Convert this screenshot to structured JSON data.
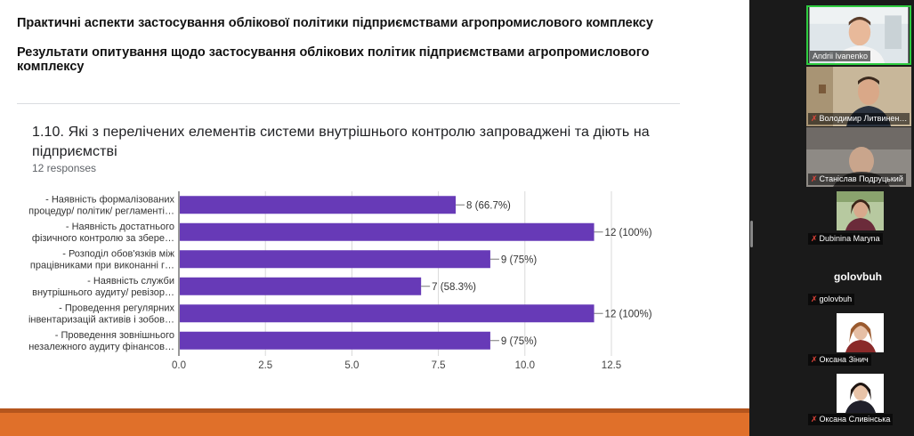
{
  "slide": {
    "title": "Практичні аспекти застосування облікової політики підприємствами агропромислового комплексу",
    "subtitle": "Результати опитування щодо застосування облікових політик підприємствами агропромислового комплексу",
    "question": "1.10. Які з перелічених елементів системи внутрішнього контролю запроваджені та діють на підприємстві",
    "responses": "12 responses"
  },
  "chart_data": {
    "type": "bar",
    "orientation": "horizontal",
    "categories": [
      [
        "- Наявність формалізованих",
        "процедур/ політик/ регламенті…"
      ],
      [
        "- Наявність достатнього",
        "фізичного контролю за збере…"
      ],
      [
        "- Розподіл обов'язків між",
        "працівниками при виконанні г…"
      ],
      [
        "- Наявність служби",
        "внутрішнього аудиту/ ревізор…"
      ],
      [
        "- Проведення регулярних",
        "інвентаризацій активів і зобов…"
      ],
      [
        "- Проведення зовнішнього",
        "незалежного аудиту фінансов…"
      ]
    ],
    "values": [
      8,
      12,
      9,
      7,
      12,
      9
    ],
    "data_labels": [
      "8 (66.7%)",
      "12 (100%)",
      "9 (75%)",
      "7 (58.3%)",
      "12 (100%)",
      "9 (75%)"
    ],
    "xlim": [
      0,
      12.5
    ],
    "xticks": [
      "0.0",
      "2.5",
      "5.0",
      "7.5",
      "10.0",
      "12.5"
    ],
    "bar_color": "#673ab7",
    "grid": true
  },
  "participants": [
    {
      "name": "Andrii Ivanenko",
      "muted": false,
      "active": true
    },
    {
      "name": "Володимир Литвинен…",
      "muted": true
    },
    {
      "name": "Станіслав Подруцький",
      "muted": true
    },
    {
      "name": "Dubinina Maryna",
      "muted": true
    },
    {
      "name": "golovbuh",
      "muted": true,
      "display": "golovbuh"
    },
    {
      "name": "Оксана Зінич",
      "muted": true
    },
    {
      "name": "Оксана Сливінська",
      "muted": true
    }
  ],
  "colors": {
    "accent_orange": "#e0702a",
    "active_border": "#2ecc40",
    "muted_icon": "#e0453a"
  }
}
